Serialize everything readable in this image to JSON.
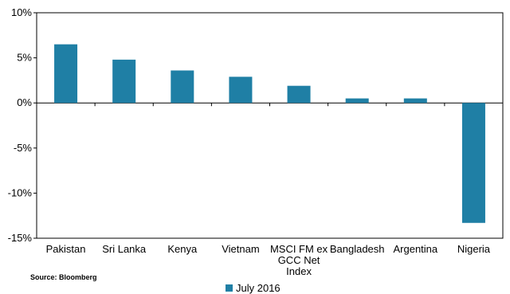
{
  "chart_data": {
    "type": "bar",
    "categories": [
      "Pakistan",
      "Sri Lanka",
      "Kenya",
      "Vietnam",
      "MSCI FM ex GCC Net Index",
      "Bangladesh",
      "Argentina",
      "Nigeria"
    ],
    "category_lines": [
      [
        "Pakistan"
      ],
      [
        "Sri Lanka"
      ],
      [
        "Kenya"
      ],
      [
        "Vietnam"
      ],
      [
        "MSCI FM ex",
        "GCC Net",
        "Index"
      ],
      [
        "Bangladesh"
      ],
      [
        "Argentina"
      ],
      [
        "Nigeria"
      ]
    ],
    "series": [
      {
        "name": "July 2016",
        "values": [
          6.5,
          4.8,
          3.6,
          2.9,
          1.9,
          0.5,
          0.5,
          -13.3
        ]
      }
    ],
    "yticks": [
      "10%",
      "5%",
      "0%",
      "-5%",
      "-10%",
      "-15%"
    ],
    "ylim": [
      -15,
      10
    ],
    "grid": false,
    "legend": "bottom-center",
    "bar_color": "#1f7fa5"
  },
  "source": "Source: Bloomberg"
}
